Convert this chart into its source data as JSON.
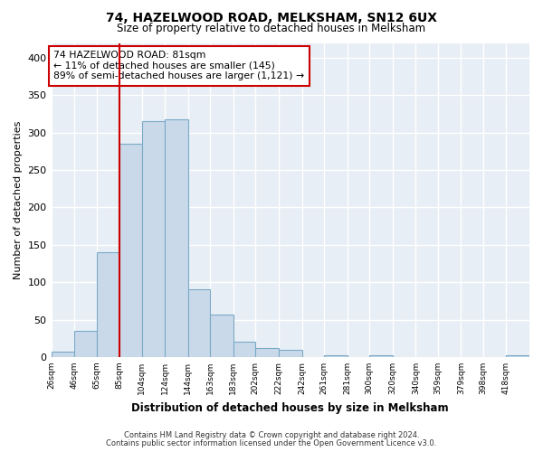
{
  "title": "74, HAZELWOOD ROAD, MELKSHAM, SN12 6UX",
  "subtitle": "Size of property relative to detached houses in Melksham",
  "xlabel": "Distribution of detached houses by size in Melksham",
  "ylabel": "Number of detached properties",
  "bin_labels": [
    "26sqm",
    "46sqm",
    "65sqm",
    "85sqm",
    "104sqm",
    "124sqm",
    "144sqm",
    "163sqm",
    "183sqm",
    "202sqm",
    "222sqm",
    "242sqm",
    "261sqm",
    "281sqm",
    "300sqm",
    "320sqm",
    "340sqm",
    "359sqm",
    "379sqm",
    "398sqm",
    "418sqm"
  ],
  "bar_heights": [
    7,
    35,
    140,
    285,
    315,
    318,
    90,
    57,
    20,
    12,
    10,
    0,
    2,
    0,
    2,
    0,
    0,
    0,
    0,
    0,
    2
  ],
  "bar_color": "#c9d9e9",
  "bar_edgecolor": "#7aaac8",
  "property_line_x": 85,
  "property_line_color": "#cc0000",
  "annotation_line1": "74 HAZELWOOD ROAD: 81sqm",
  "annotation_line2": "← 11% of detached houses are smaller (145)",
  "annotation_line3": "89% of semi-detached houses are larger (1,121) →",
  "annotation_box_color": "#ffffff",
  "annotation_box_edgecolor": "#cc0000",
  "ylim": [
    0,
    420
  ],
  "yticks": [
    0,
    50,
    100,
    150,
    200,
    250,
    300,
    350,
    400
  ],
  "footer_line1": "Contains HM Land Registry data © Crown copyright and database right 2024.",
  "footer_line2": "Contains public sector information licensed under the Open Government Licence v3.0.",
  "background_color": "#ffffff",
  "plot_background_color": "#e8eef5",
  "grid_color": "#ffffff",
  "bin_edges": [
    26,
    46,
    65,
    85,
    104,
    124,
    144,
    163,
    183,
    202,
    222,
    242,
    261,
    281,
    300,
    320,
    340,
    359,
    379,
    398,
    418,
    438
  ]
}
